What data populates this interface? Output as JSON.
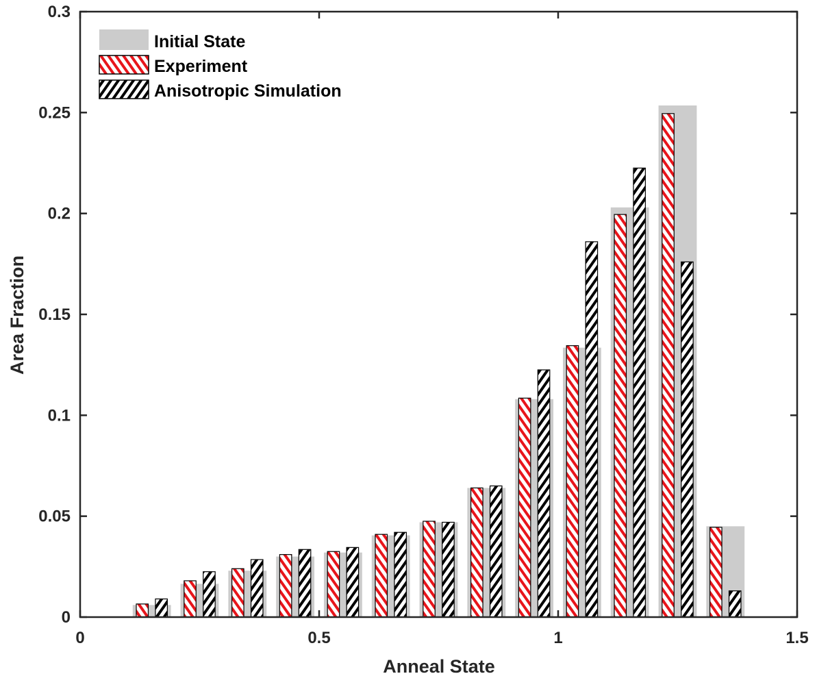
{
  "chart_data": {
    "type": "bar",
    "title": "",
    "xlabel": "Anneal State",
    "ylabel": "Area Fraction",
    "xlim": [
      0,
      1.5
    ],
    "ylim": [
      0,
      0.3
    ],
    "x_ticks": [
      0,
      0.5,
      1,
      1.5
    ],
    "x_tick_labels": [
      "0",
      "0.5",
      "1",
      "1.5"
    ],
    "y_ticks": [
      0,
      0.05,
      0.1,
      0.15,
      0.2,
      0.25,
      0.3
    ],
    "y_tick_labels": [
      "0",
      "0.05",
      "0.1",
      "0.15",
      "0.2",
      "0.25",
      "0.3"
    ],
    "grid": false,
    "legend_position": "top-left",
    "x": [
      0.15,
      0.25,
      0.35,
      0.45,
      0.55,
      0.65,
      0.75,
      0.85,
      0.95,
      1.05,
      1.15,
      1.25,
      1.35
    ],
    "series": [
      {
        "name": "Initial State",
        "style": "solid",
        "color": "#cccccc",
        "values": [
          0.006,
          0.0165,
          0.023,
          0.03,
          0.032,
          0.0405,
          0.047,
          0.064,
          0.108,
          0.1335,
          0.203,
          0.2535,
          0.045
        ]
      },
      {
        "name": "Experiment",
        "style": "hatch",
        "color": "#e8151b",
        "values": [
          0.0065,
          0.018,
          0.024,
          0.031,
          0.0325,
          0.041,
          0.0475,
          0.064,
          0.1085,
          0.1345,
          0.1995,
          0.2495,
          0.0445
        ]
      },
      {
        "name": "Anisotropic Simulation",
        "style": "hatch",
        "color": "#000000",
        "values": [
          0.009,
          0.0225,
          0.0285,
          0.0335,
          0.0345,
          0.042,
          0.047,
          0.065,
          0.1225,
          0.186,
          0.2225,
          0.176,
          0.013
        ]
      }
    ]
  }
}
